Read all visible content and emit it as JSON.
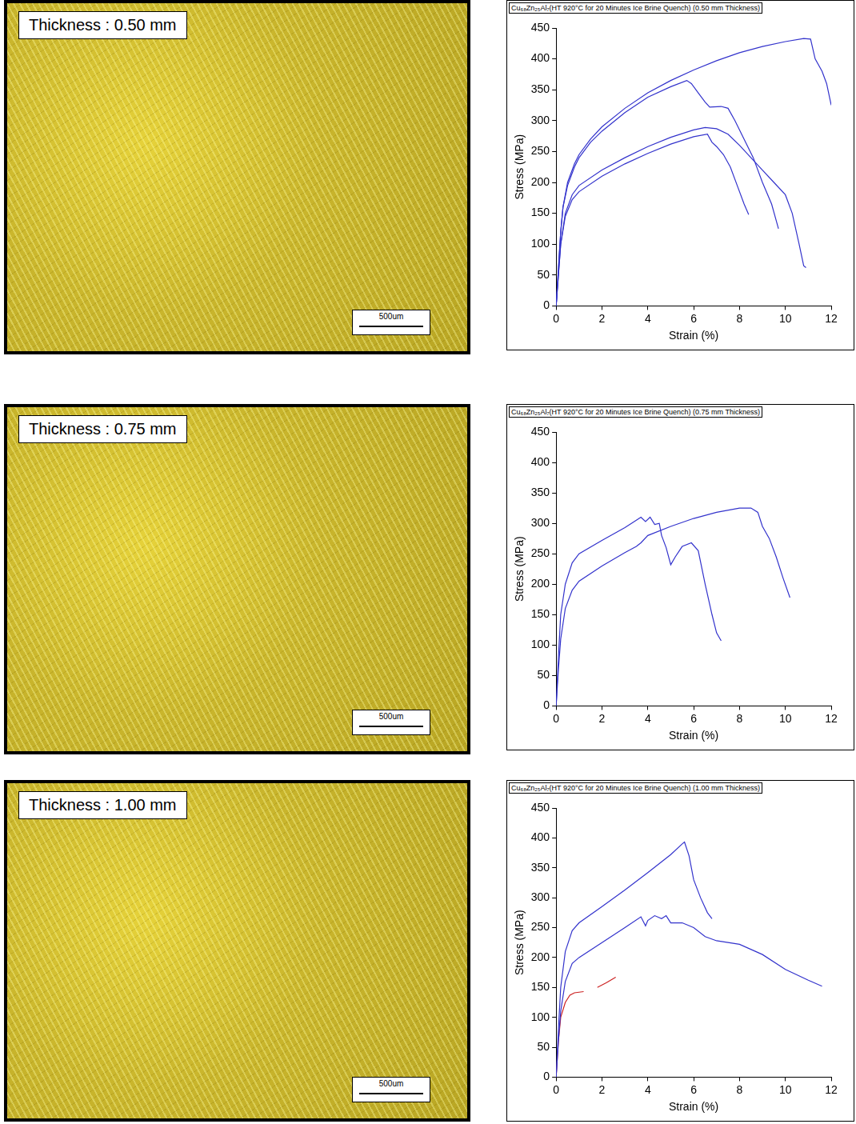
{
  "micrographs": [
    {
      "label": "Thickness : 0.50 mm",
      "scale_bar": "500um"
    },
    {
      "label": "Thickness : 0.75 mm",
      "scale_bar": "500um"
    },
    {
      "label": "Thickness : 1.00 mm",
      "scale_bar": "500um"
    }
  ],
  "chart_data": [
    {
      "type": "line",
      "title": "Cu₆₈Zn₂₅Al₇(HT 920°C for 20 Minutes Ice Brine Quench) (0.50 mm Thickness)",
      "x_label": "Strain (%)",
      "y_label": "Stress (MPa)",
      "xlim": [
        0,
        12
      ],
      "xticks": [
        0,
        2,
        4,
        6,
        8,
        10,
        12
      ],
      "ylim": [
        0,
        450
      ],
      "yticks": [
        0,
        50,
        100,
        150,
        200,
        250,
        300,
        350,
        400,
        450
      ],
      "grid": false,
      "series": [
        {
          "color": "#3333cc",
          "x": [
            0,
            0.1,
            0.2,
            0.3,
            0.5,
            0.8,
            1,
            1.5,
            2,
            3,
            4,
            5,
            6,
            7,
            8,
            9,
            10,
            10.8,
            11.1,
            11.3,
            11.6,
            11.8,
            12
          ],
          "values": [
            0,
            60,
            120,
            160,
            200,
            230,
            245,
            270,
            290,
            320,
            345,
            365,
            382,
            397,
            410,
            420,
            428,
            433,
            432,
            400,
            380,
            360,
            325
          ]
        },
        {
          "color": "#3333cc",
          "x": [
            0,
            0.1,
            0.2,
            0.3,
            0.5,
            0.8,
            1,
            1.5,
            2,
            3,
            4,
            5,
            5.7,
            5.9,
            6.2,
            6.5,
            6.7,
            7.2,
            7.5,
            7.8,
            8.2,
            8.6,
            9,
            9.4,
            9.7
          ],
          "values": [
            0,
            60,
            120,
            160,
            195,
            225,
            240,
            265,
            283,
            313,
            338,
            355,
            365,
            360,
            345,
            330,
            322,
            323,
            320,
            300,
            270,
            240,
            200,
            165,
            125
          ]
        },
        {
          "color": "#3333cc",
          "x": [
            0,
            0.1,
            0.2,
            0.4,
            0.7,
            1,
            2,
            3,
            4,
            5,
            6,
            6.5,
            7,
            7.5,
            8,
            8.5,
            9,
            9.5,
            10,
            10.3,
            10.6,
            10.8,
            10.9
          ],
          "values": [
            0,
            50,
            100,
            150,
            180,
            195,
            220,
            240,
            258,
            273,
            285,
            289,
            287,
            278,
            260,
            240,
            220,
            200,
            180,
            150,
            100,
            65,
            62
          ]
        },
        {
          "color": "#3333cc",
          "x": [
            0,
            0.1,
            0.2,
            0.4,
            0.7,
            1,
            2,
            3,
            4,
            5,
            6,
            6.6,
            6.8,
            7,
            7.3,
            7.6,
            7.9,
            8.2,
            8.4
          ],
          "values": [
            0,
            50,
            100,
            145,
            172,
            185,
            210,
            230,
            247,
            262,
            274,
            278,
            265,
            258,
            245,
            225,
            195,
            165,
            148
          ]
        }
      ]
    },
    {
      "type": "line",
      "title": "Cu₆₈Zn₂₅Al₇(HT 920°C  for 20 Minutes Ice Brine Quench) (0.75 mm Thickness)",
      "x_label": "Strain (%)",
      "y_label": "Stress (MPa)",
      "xlim": [
        0,
        12
      ],
      "xticks": [
        0,
        2,
        4,
        6,
        8,
        10,
        12
      ],
      "ylim": [
        0,
        450
      ],
      "yticks": [
        0,
        50,
        100,
        150,
        200,
        250,
        300,
        350,
        400,
        450
      ],
      "grid": false,
      "series": [
        {
          "color": "#3333cc",
          "x": [
            0,
            0.1,
            0.2,
            0.4,
            0.7,
            1,
            2,
            3,
            3.5,
            3.7,
            3.9,
            4.1,
            4.3,
            4.5,
            4.6,
            4.8,
            5,
            5.2,
            5.5,
            5.9,
            6.2,
            6.5,
            6.8,
            7,
            7.2
          ],
          "values": [
            0,
            80,
            150,
            200,
            235,
            250,
            272,
            293,
            305,
            310,
            303,
            310,
            298,
            300,
            280,
            260,
            232,
            245,
            262,
            268,
            255,
            200,
            150,
            120,
            107
          ]
        },
        {
          "color": "#3333cc",
          "x": [
            0,
            0.1,
            0.2,
            0.4,
            0.7,
            1,
            2,
            3,
            3.5,
            3.7,
            4,
            5,
            6,
            7,
            8,
            8.5,
            8.8,
            9,
            9.3,
            9.6,
            9.9,
            10.2
          ],
          "values": [
            0,
            60,
            110,
            160,
            190,
            205,
            230,
            252,
            262,
            268,
            280,
            295,
            308,
            318,
            325,
            325,
            318,
            295,
            275,
            245,
            210,
            178
          ]
        }
      ]
    },
    {
      "type": "line",
      "title": "Cu₆₈Zn₂₅Al₇(HT 920°C for 20 Minutes Ice Brine Quench) (1.00 mm Thickness)",
      "x_label": "Strain (%)",
      "y_label": "Stress (MPa)",
      "xlim": [
        0,
        12
      ],
      "xticks": [
        0,
        2,
        4,
        6,
        8,
        10,
        12
      ],
      "ylim": [
        0,
        450
      ],
      "yticks": [
        0,
        50,
        100,
        150,
        200,
        250,
        300,
        350,
        400,
        450
      ],
      "grid": false,
      "series": [
        {
          "color": "#3333cc",
          "x": [
            0,
            0.1,
            0.2,
            0.4,
            0.7,
            1,
            2,
            3,
            4,
            5,
            5.5,
            5.6,
            5.8,
            6,
            6.3,
            6.6,
            6.8
          ],
          "values": [
            0,
            80,
            150,
            210,
            245,
            258,
            285,
            313,
            342,
            372,
            390,
            393,
            370,
            330,
            300,
            275,
            265
          ]
        },
        {
          "color": "#3333cc",
          "x": [
            0,
            0.1,
            0.2,
            0.4,
            0.7,
            1,
            2,
            3,
            3.7,
            3.9,
            4,
            4.3,
            4.6,
            4.8,
            5,
            5.5,
            6,
            6.5,
            7,
            8,
            9,
            10,
            11,
            11.6
          ],
          "values": [
            0,
            60,
            110,
            160,
            190,
            200,
            225,
            250,
            268,
            253,
            262,
            270,
            265,
            270,
            258,
            258,
            250,
            235,
            228,
            222,
            205,
            180,
            162,
            152
          ]
        },
        {
          "color": "#cc2222",
          "x": [
            0,
            0.1,
            0.2,
            0.4,
            0.6,
            0.8,
            1.2,
            1.5,
            1.8,
            2.2,
            2.6
          ],
          "values": [
            0,
            60,
            100,
            125,
            137,
            141,
            143,
            null,
            150,
            158,
            167
          ]
        }
      ]
    }
  ]
}
